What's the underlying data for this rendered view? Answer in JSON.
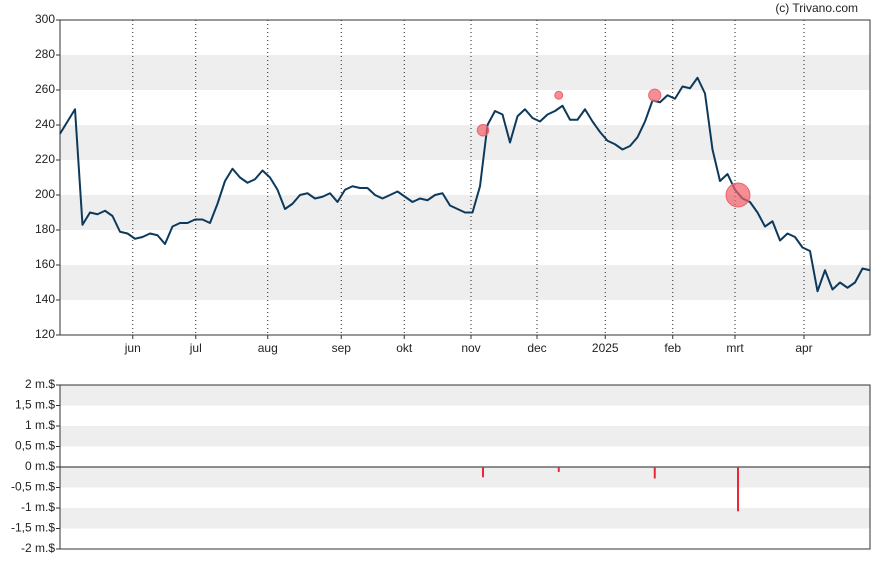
{
  "chart_data": [
    {
      "type": "line",
      "credit": "(c) Trivano.com",
      "xlim": [
        0,
        108
      ],
      "xticks": [
        {
          "value": 9.7,
          "label": "jun"
        },
        {
          "value": 18.1,
          "label": "jul"
        },
        {
          "value": 27.7,
          "label": "aug"
        },
        {
          "value": 37.5,
          "label": "sep"
        },
        {
          "value": 45.9,
          "label": "okt"
        },
        {
          "value": 54.8,
          "label": "nov"
        },
        {
          "value": 63.6,
          "label": "dec"
        },
        {
          "value": 72.7,
          "label": "2025"
        },
        {
          "value": 81.7,
          "label": "feb"
        },
        {
          "value": 90,
          "label": "mrt"
        },
        {
          "value": 99.2,
          "label": "apr"
        }
      ],
      "ylim": [
        120,
        300
      ],
      "yticks": [
        120,
        140,
        160,
        180,
        200,
        220,
        240,
        260,
        280,
        300
      ],
      "series": [
        {
          "color": "#0d3a5c",
          "values": [
            235,
            242,
            249,
            183,
            190,
            189,
            191,
            188,
            179,
            178,
            175,
            176,
            178,
            177,
            172,
            182,
            184,
            184,
            186,
            186,
            184,
            195,
            208,
            215,
            210,
            207,
            209,
            214,
            210,
            203,
            192,
            195,
            200,
            201,
            198,
            199,
            201,
            196,
            203,
            205,
            204,
            204,
            200,
            198,
            200,
            202,
            199,
            196,
            198,
            197,
            200,
            201,
            194,
            192,
            190,
            190,
            205,
            240,
            248,
            246,
            230,
            245,
            249,
            244,
            242,
            246,
            248,
            251,
            243,
            243,
            249,
            242,
            236,
            231,
            229,
            226,
            228,
            233,
            242,
            254,
            253,
            257,
            255,
            262,
            261,
            267,
            258,
            226,
            208,
            212,
            203,
            198,
            196,
            190,
            182,
            185,
            174,
            178,
            176,
            170,
            168,
            145,
            157,
            146,
            150,
            147,
            150,
            158,
            157
          ]
        }
      ],
      "markers": {
        "color": "#f0606a",
        "x": [
          56.4,
          66.5,
          79.3,
          90.4
        ],
        "y": [
          237,
          257,
          257,
          200
        ]
      }
    },
    {
      "type": "bar",
      "color": "#e8283a",
      "xlim": [
        0,
        108
      ],
      "x": [
        56.4,
        66.5,
        79.3,
        90.4
      ],
      "values": [
        -0.25,
        -0.12,
        -0.28,
        -1.08
      ],
      "ylim": [
        -2,
        2
      ],
      "yticks": [
        {
          "value": -2,
          "label": "-2 m.$"
        },
        {
          "value": -1.5,
          "label": "-1,5 m.$"
        },
        {
          "value": -1,
          "label": "-1 m.$"
        },
        {
          "value": -0.5,
          "label": "-0,5 m.$"
        },
        {
          "value": 0,
          "label": "0 m.$"
        },
        {
          "value": 0.5,
          "label": "0,5 m.$"
        },
        {
          "value": 1,
          "label": "1 m.$"
        },
        {
          "value": 1.5,
          "label": "1,5 m.$"
        },
        {
          "value": 2,
          "label": "2 m.$"
        }
      ]
    }
  ]
}
